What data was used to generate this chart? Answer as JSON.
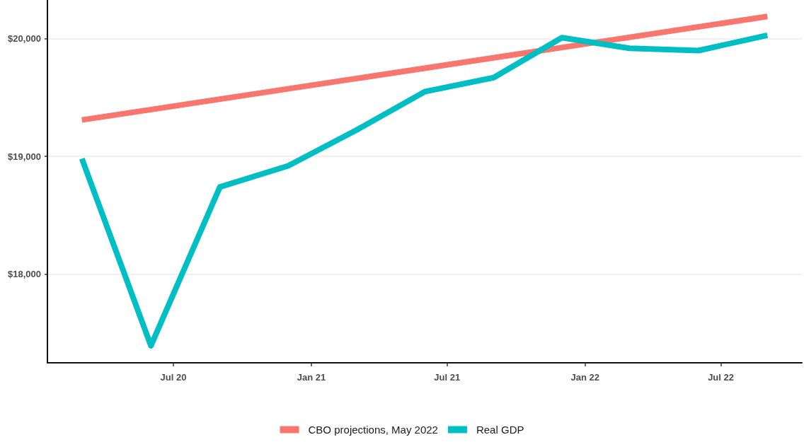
{
  "chart_data": {
    "type": "line",
    "x": [
      "2020-03-01",
      "2020-06-01",
      "2020-09-01",
      "2020-12-01",
      "2021-03-01",
      "2021-06-01",
      "2021-09-01",
      "2021-12-01",
      "2022-03-01",
      "2022-06-01",
      "2022-09-01"
    ],
    "series": [
      {
        "name": "CBO projections, May 2022",
        "color": "#f8766d",
        "x": [
          "2020-03-01",
          "2022-09-01"
        ],
        "values": [
          19310,
          20190
        ]
      },
      {
        "name": "Real GDP",
        "color": "#00bfc4",
        "values": [
          18980,
          17390,
          18740,
          18920,
          19220,
          19550,
          19670,
          20010,
          19920,
          19900,
          20030
        ]
      }
    ],
    "xlim": [
      "2020-01-15",
      "2022-10-17"
    ],
    "xticks": [
      {
        "value": "2020-07-01",
        "label": "Jul 20"
      },
      {
        "value": "2021-01-01",
        "label": "Jan 21"
      },
      {
        "value": "2021-07-01",
        "label": "Jul 21"
      },
      {
        "value": "2022-01-01",
        "label": "Jan 22"
      },
      {
        "value": "2022-07-01",
        "label": "Jul 22"
      }
    ],
    "ylim": [
      17245,
      20330
    ],
    "yticks": [
      {
        "value": 18000,
        "label": "$18,000"
      },
      {
        "value": 19000,
        "label": "$19,000"
      },
      {
        "value": 20000,
        "label": "$20,000"
      }
    ],
    "grid": "y",
    "legend": "bottom"
  }
}
